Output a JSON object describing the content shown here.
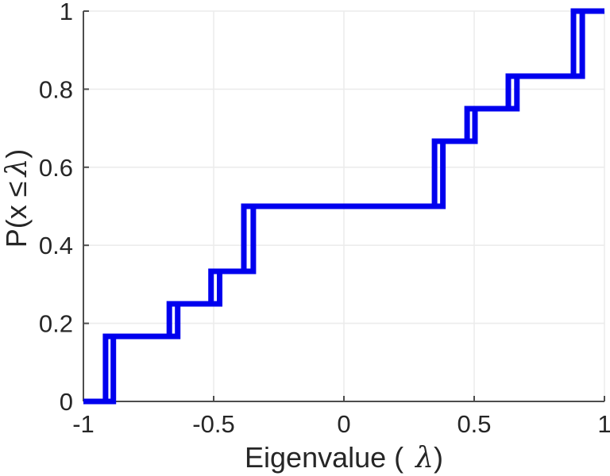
{
  "chart_data": {
    "type": "line",
    "subtype": "empirical-cdf-steps",
    "title": "",
    "xlabel": "Eigenvalue ( λ)",
    "ylabel": "P(x ≤ λ)",
    "xlim": [
      -1,
      1
    ],
    "ylim": [
      0,
      1
    ],
    "xticks": [
      -1,
      -0.5,
      0,
      0.5,
      1
    ],
    "xtick_labels": [
      "-1",
      "-0.5",
      "0",
      "0.5",
      "1"
    ],
    "yticks": [
      0,
      0.2,
      0.4,
      0.6,
      0.8,
      1
    ],
    "ytick_labels": [
      "0",
      "0.2",
      "0.4",
      "0.6",
      "0.8",
      "1"
    ],
    "grid": true,
    "legend_position": "none",
    "line_color": "#0000EE",
    "line_width": 7,
    "levels": [
      0,
      0.1667,
      0.25,
      0.3333,
      0.5,
      0.6667,
      0.75,
      0.8333,
      1
    ],
    "series": [
      {
        "name": "ecdf-step-curve-1",
        "jump_x": [
          -0.915,
          -0.67,
          -0.51,
          -0.384,
          0.348,
          0.473,
          0.631,
          0.881
        ]
      },
      {
        "name": "ecdf-step-curve-2",
        "jump_x": [
          -0.885,
          -0.638,
          -0.477,
          -0.348,
          0.38,
          0.503,
          0.664,
          0.915
        ]
      }
    ]
  },
  "labels": {
    "xlabel_prefix": "Eigenvalue (",
    "ylabel_prefix": "P(x ≤",
    "lambda": "λ",
    "paren_close": ")"
  },
  "colors": {
    "background": "#ffffff",
    "axis": "#4d4d4d",
    "tick_label": "#262626",
    "grid": "#ececec",
    "line": "#0000EE"
  }
}
